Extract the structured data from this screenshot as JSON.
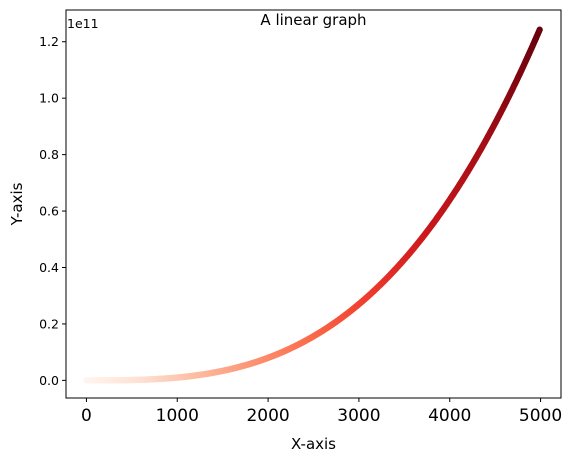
{
  "chart_data": {
    "type": "scatter",
    "title": "A linear graph",
    "xlabel": "X-axis",
    "ylabel": "Y-axis",
    "offset_text": "1e11",
    "xlim": [
      -225,
      5225
    ],
    "ylim": [
      -6250000000,
      131250000000
    ],
    "x_ticks": [
      0,
      1000,
      2000,
      3000,
      4000,
      5000
    ],
    "x_tick_labels": [
      "0",
      "1000",
      "2000",
      "3000",
      "4000",
      "5000"
    ],
    "y_ticks": [
      0,
      20000000000,
      40000000000,
      60000000000,
      80000000000,
      100000000000,
      120000000000
    ],
    "y_tick_labels": [
      "0.0",
      "0.2",
      "0.4",
      "0.6",
      "0.8",
      "1.0",
      "1.2"
    ],
    "series": [
      {
        "function": "y = x^3",
        "x_start": 0,
        "x_end": 4999,
        "x_step": 1,
        "colormap": "Reds"
      }
    ],
    "grid": false,
    "legend": "none"
  }
}
